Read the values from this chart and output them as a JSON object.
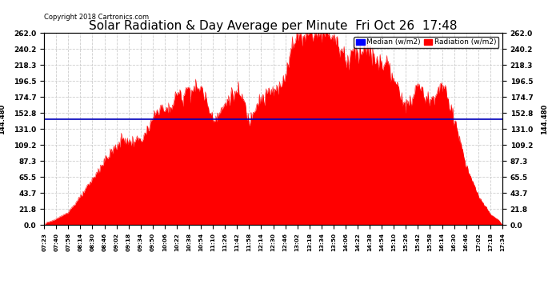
{
  "title": "Solar Radiation & Day Average per Minute  Fri Oct 26  17:48",
  "copyright": "Copyright 2018 Cartronics.com",
  "median_value": 144.48,
  "median_label": "144.480",
  "y_ticks": [
    0.0,
    21.8,
    43.7,
    65.5,
    87.3,
    109.2,
    131.0,
    152.8,
    174.7,
    196.5,
    218.3,
    240.2,
    262.0
  ],
  "y_max": 262.0,
  "legend_median_color": "#0000ff",
  "legend_median_label": "Median (w/m2)",
  "legend_radiation_color": "#ff0000",
  "legend_radiation_label": "Radiation (w/m2)",
  "fill_color": "#ff0000",
  "median_line_color": "#0000bb",
  "background_color": "#ffffff",
  "grid_color": "#cccccc",
  "title_fontsize": 11,
  "x_tick_labels": [
    "07:23",
    "07:40",
    "07:58",
    "08:14",
    "08:30",
    "08:46",
    "09:02",
    "09:18",
    "09:34",
    "09:50",
    "10:06",
    "10:22",
    "10:38",
    "10:54",
    "11:10",
    "11:26",
    "11:42",
    "11:58",
    "12:14",
    "12:30",
    "12:46",
    "13:02",
    "13:18",
    "13:34",
    "13:50",
    "14:06",
    "14:22",
    "14:38",
    "14:54",
    "15:10",
    "15:26",
    "15:42",
    "15:58",
    "16:14",
    "16:30",
    "16:46",
    "17:02",
    "17:18",
    "17:34"
  ],
  "radiation_profile": [
    2,
    8,
    18,
    38,
    62,
    88,
    108,
    112,
    118,
    138,
    158,
    172,
    185,
    178,
    148,
    162,
    178,
    148,
    168,
    178,
    210,
    252,
    262,
    258,
    250,
    238,
    242,
    235,
    228,
    192,
    172,
    188,
    168,
    192,
    148,
    80,
    40,
    15,
    3
  ]
}
